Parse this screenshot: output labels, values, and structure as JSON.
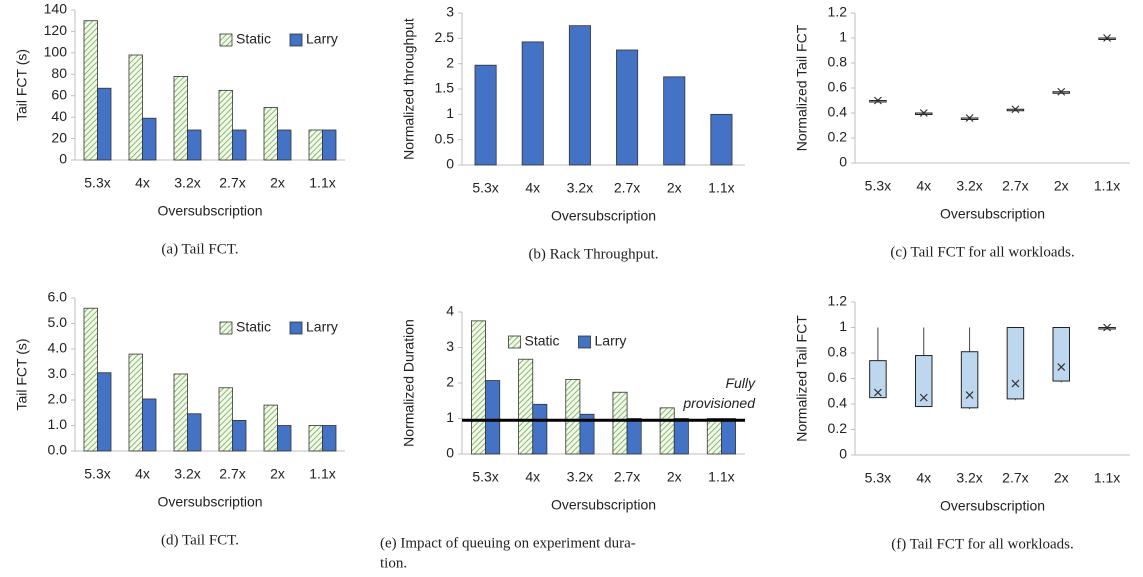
{
  "chart_data": [
    {
      "type": "bar",
      "ylabel": "Tail FCT (s)",
      "xlabel": "Oversubscription",
      "caption": [
        "(a)  Tail FCT."
      ],
      "categories": [
        "5.3x",
        "4x",
        "3.2x",
        "2.7x",
        "2x",
        "1.1x"
      ],
      "ylim": [
        0,
        140
      ],
      "yticks": [
        0,
        20,
        40,
        60,
        80,
        100,
        120,
        140
      ],
      "legend": "upper right",
      "series": [
        {
          "name": "Static",
          "color": "#70ad47",
          "hatch": true,
          "values": [
            130,
            98,
            78,
            65,
            49,
            28
          ]
        },
        {
          "name": "Larry",
          "color": "#4472c4",
          "values": [
            67,
            39,
            28,
            28,
            28,
            28
          ]
        }
      ]
    },
    {
      "type": "bar",
      "ylabel": "Normalized throughput",
      "xlabel": "Oversubscription",
      "caption": [
        "(b)  Rack Throughput."
      ],
      "categories": [
        "5.3x",
        "4x",
        "3.2x",
        "2.7x",
        "2x",
        "1.1x"
      ],
      "ylim": [
        0,
        3
      ],
      "yticks": [
        0,
        0.5,
        1,
        1.5,
        2,
        2.5,
        3
      ],
      "series": [
        {
          "name": "Larry",
          "color": "#4472c4",
          "values": [
            1.97,
            2.43,
            2.75,
            2.27,
            1.74,
            1.0
          ]
        }
      ]
    },
    {
      "type": "box",
      "ylabel": "Normalized Tail FCT",
      "xlabel": "Oversubscription",
      "caption": [
        "(c)  Tail FCT for all workloads."
      ],
      "categories": [
        "5.3x",
        "4x",
        "3.2x",
        "2.7x",
        "2x",
        "1.1x"
      ],
      "ylim": [
        0,
        1.2
      ],
      "yticks": [
        0,
        0.2,
        0.4,
        0.6,
        0.8,
        1,
        1.2
      ],
      "color": "#bdd7ee",
      "min": [
        0.49,
        0.39,
        0.35,
        0.42,
        0.56,
        0.99
      ],
      "q1": [
        0.49,
        0.4,
        0.35,
        0.42,
        0.57,
        1.0
      ],
      "q3": [
        0.5,
        0.4,
        0.36,
        0.43,
        0.57,
        1.0
      ],
      "max": [
        0.51,
        0.41,
        0.37,
        0.44,
        0.58,
        1.0
      ],
      "mean": [
        0.5,
        0.4,
        0.36,
        0.43,
        0.57,
        1.0
      ]
    },
    {
      "type": "bar",
      "ylabel": "Tail FCT (s)",
      "xlabel": "Oversubscription",
      "caption": [
        "(d)  Tail FCT."
      ],
      "categories": [
        "5.3x",
        "4x",
        "3.2x",
        "2.7x",
        "2x",
        "1.1x"
      ],
      "ylim": [
        0,
        6
      ],
      "yticks": [
        {
          "value": 0,
          "label": "0.0"
        },
        {
          "value": 1,
          "label": "1.0"
        },
        {
          "value": 2,
          "label": "2.0"
        },
        {
          "value": 3,
          "label": "3.0"
        },
        {
          "value": 4,
          "label": "4.0"
        },
        {
          "value": 5,
          "label": "5.0"
        },
        {
          "value": 6,
          "label": "6.0"
        }
      ],
      "legend": "upper right",
      "series": [
        {
          "name": "Static",
          "color": "#70ad47",
          "hatch": true,
          "values": [
            5.6,
            3.8,
            3.02,
            2.48,
            1.8,
            1.0
          ]
        },
        {
          "name": "Larry",
          "color": "#4472c4",
          "values": [
            3.07,
            2.04,
            1.46,
            1.2,
            1.0,
            1.0
          ]
        }
      ]
    },
    {
      "type": "bar",
      "ylabel": "Normalized Duration",
      "xlabel": "Oversubscription",
      "caption": [
        "(e)  Impact of queuing on experiment dura-",
        "tion."
      ],
      "categories": [
        "5.3x",
        "4x",
        "3.2x",
        "2.7x",
        "2x",
        "1.1x"
      ],
      "ylim": [
        0,
        4
      ],
      "yticks": [
        0,
        1,
        2,
        3,
        4
      ],
      "legend": "upper center",
      "hline": 0.95,
      "annotation": [
        "Fully",
        "provisioned"
      ],
      "series": [
        {
          "name": "Static",
          "color": "#70ad47",
          "hatch": true,
          "values": [
            3.75,
            2.67,
            2.1,
            1.74,
            1.3,
            1.0
          ]
        },
        {
          "name": "Larry",
          "color": "#4472c4",
          "values": [
            2.07,
            1.4,
            1.12,
            1.0,
            1.0,
            1.0
          ]
        }
      ]
    },
    {
      "type": "box",
      "ylabel": "Normalized Tail FCT",
      "xlabel": "Oversubscription",
      "caption": [
        "(f)  Tail FCT for all workloads."
      ],
      "categories": [
        "5.3x",
        "4x",
        "3.2x",
        "2.7x",
        "2x",
        "1.1x"
      ],
      "ylim": [
        0,
        1.2
      ],
      "yticks": [
        0,
        0.2,
        0.4,
        0.6,
        0.8,
        1,
        1.2
      ],
      "color": "#bdd7ee",
      "min": [
        0.45,
        0.38,
        0.36,
        0.43,
        0.57,
        1.0
      ],
      "q1": [
        0.45,
        0.38,
        0.37,
        0.44,
        0.58,
        1.0
      ],
      "q3": [
        0.74,
        0.78,
        0.81,
        1.0,
        1.0,
        1.0
      ],
      "max": [
        1.0,
        1.0,
        1.0,
        1.0,
        1.0,
        1.0
      ],
      "mean": [
        0.49,
        0.45,
        0.47,
        0.56,
        0.69,
        1.0
      ]
    }
  ]
}
